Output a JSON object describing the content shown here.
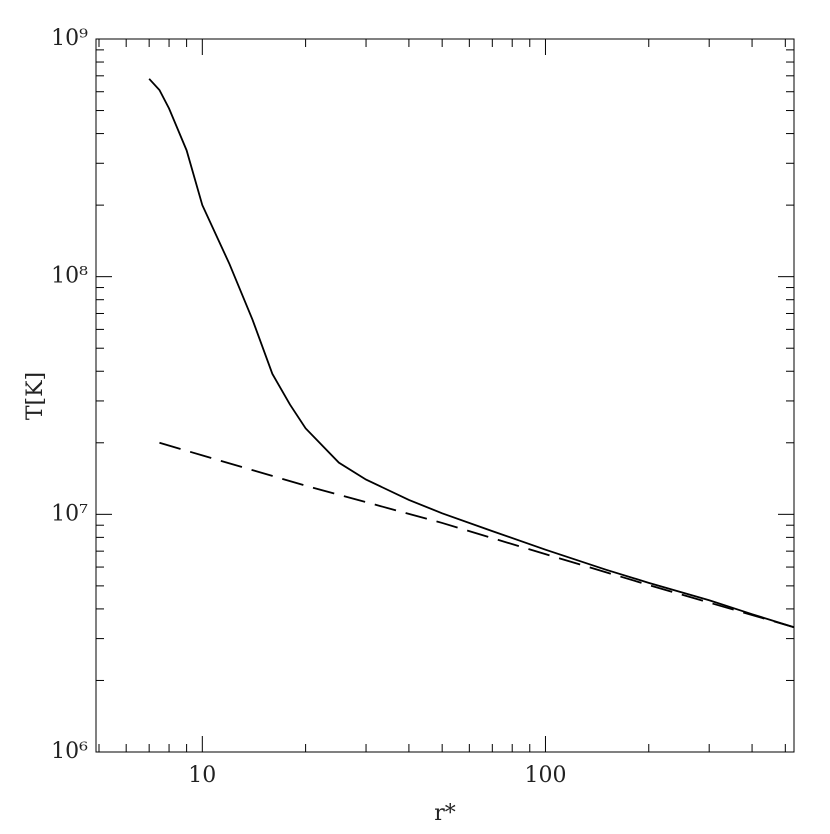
{
  "chart_data": {
    "type": "line",
    "xlabel": "r*",
    "ylabel": "T[K]",
    "xscale": "log",
    "yscale": "log",
    "xlim": [
      4.9,
      530
    ],
    "ylim": [
      1000000,
      1000000000
    ],
    "xticks": [
      10,
      100
    ],
    "xminorticks": [
      5,
      6,
      7,
      8,
      9,
      20,
      30,
      40,
      50,
      60,
      70,
      80,
      90,
      200,
      300,
      400,
      500
    ],
    "yticks": [
      {
        "value": 1000000,
        "label": "10⁶"
      },
      {
        "value": 10000000,
        "label": "10⁷"
      },
      {
        "value": 100000000,
        "label": "10⁸"
      },
      {
        "value": 1000000000,
        "label": "10⁹"
      }
    ],
    "yminorticks": [
      2000000,
      3000000,
      4000000,
      5000000,
      6000000,
      7000000,
      8000000,
      9000000,
      20000000,
      30000000,
      40000000,
      50000000,
      60000000,
      70000000,
      80000000,
      90000000,
      200000000,
      300000000,
      400000000,
      500000000,
      600000000,
      700000000,
      800000000,
      900000000
    ],
    "series": [
      {
        "color": "#000000",
        "dash": false,
        "x": [
          7,
          7.5,
          8,
          9,
          10,
          12,
          14,
          16,
          18,
          20,
          25,
          30,
          40,
          50,
          70,
          100,
          150,
          200,
          300,
          400,
          530
        ],
        "values": [
          680000000,
          610000000,
          510000000,
          340000000,
          200000000,
          113000000,
          66000000,
          39000000,
          29000000,
          23000000,
          16500000,
          14000000,
          11500000,
          10100000,
          8500000,
          7100000,
          5850000,
          5150000,
          4350000,
          3800000,
          3350000
        ]
      },
      {
        "color": "#000000",
        "dash": true,
        "x": [
          7.5,
          10,
          20,
          50,
          100,
          200,
          530
        ],
        "values": [
          20000000,
          17700000,
          13200000,
          9200000,
          6800000,
          5040000,
          3350000
        ]
      }
    ]
  }
}
